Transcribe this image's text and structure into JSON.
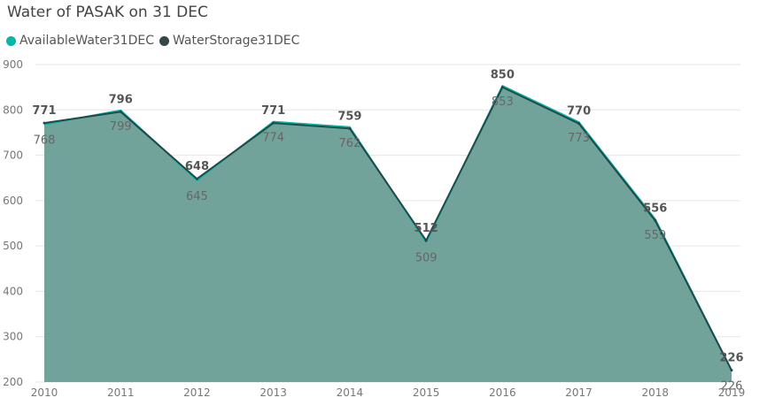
{
  "chart_data": {
    "type": "area",
    "title": "Water of PASAK on 31 DEC",
    "x": [
      "2010",
      "2011",
      "2012",
      "2013",
      "2014",
      "2015",
      "2016",
      "2017",
      "2018",
      "2019"
    ],
    "series": [
      {
        "name": "AvailableWater31DEC",
        "color": "#01B8AA",
        "values": [
          768,
          799,
          645,
          774,
          762,
          509,
          853,
          773,
          559,
          226
        ]
      },
      {
        "name": "WaterStorage31DEC",
        "color": "#374649",
        "values": [
          771,
          796,
          648,
          771,
          759,
          512,
          850,
          770,
          556,
          226
        ]
      }
    ],
    "yticks": [
      "200",
      "300",
      "400",
      "500",
      "600",
      "700",
      "800",
      "900"
    ],
    "ylim": [
      200,
      900
    ],
    "grid": true,
    "legend": "top-left",
    "area_fill_color": "#72A39C",
    "line_color": "#1E4A4A"
  }
}
